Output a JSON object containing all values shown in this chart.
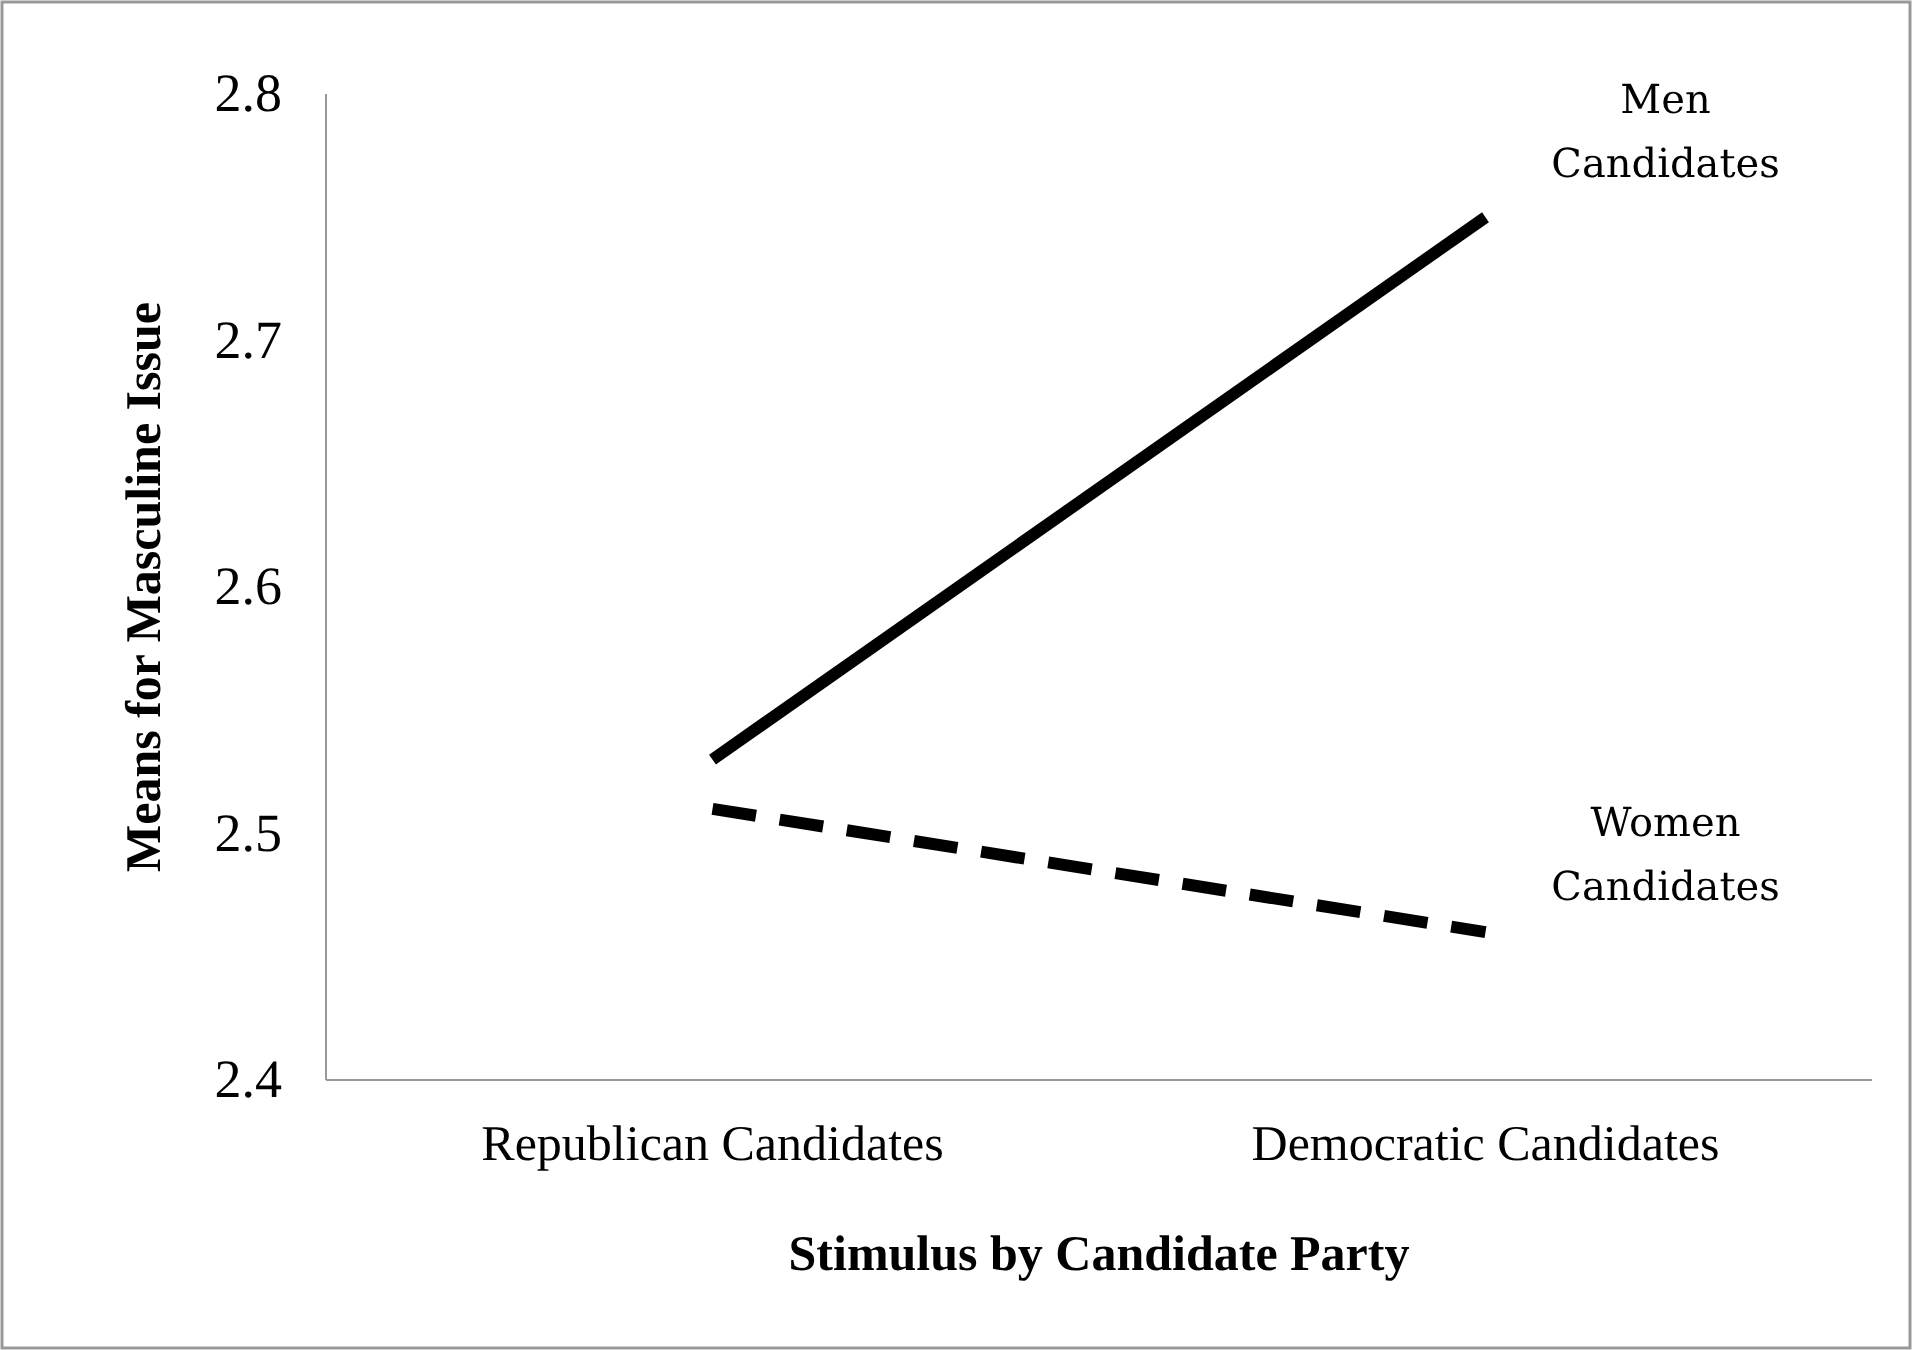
{
  "chart_data": {
    "type": "line",
    "xlabel": "Stimulus by Candidate Party",
    "ylabel": "Means for Masculine Issue",
    "categories": [
      "Republican Candidates",
      "Democratic Candidates"
    ],
    "ylim": [
      2.4,
      2.8
    ],
    "yticks": [
      2.4,
      2.5,
      2.6,
      2.7,
      2.8
    ],
    "grid": false,
    "legend": false,
    "marker": "none",
    "series": [
      {
        "name": "Men Candidates",
        "color": "#000000",
        "values": [
          2.53,
          2.75
        ],
        "line_style": "solid"
      },
      {
        "name": "Women Candidates",
        "color": "#000000",
        "values": [
          2.51,
          2.46
        ],
        "line_style": "dashed"
      }
    ]
  }
}
